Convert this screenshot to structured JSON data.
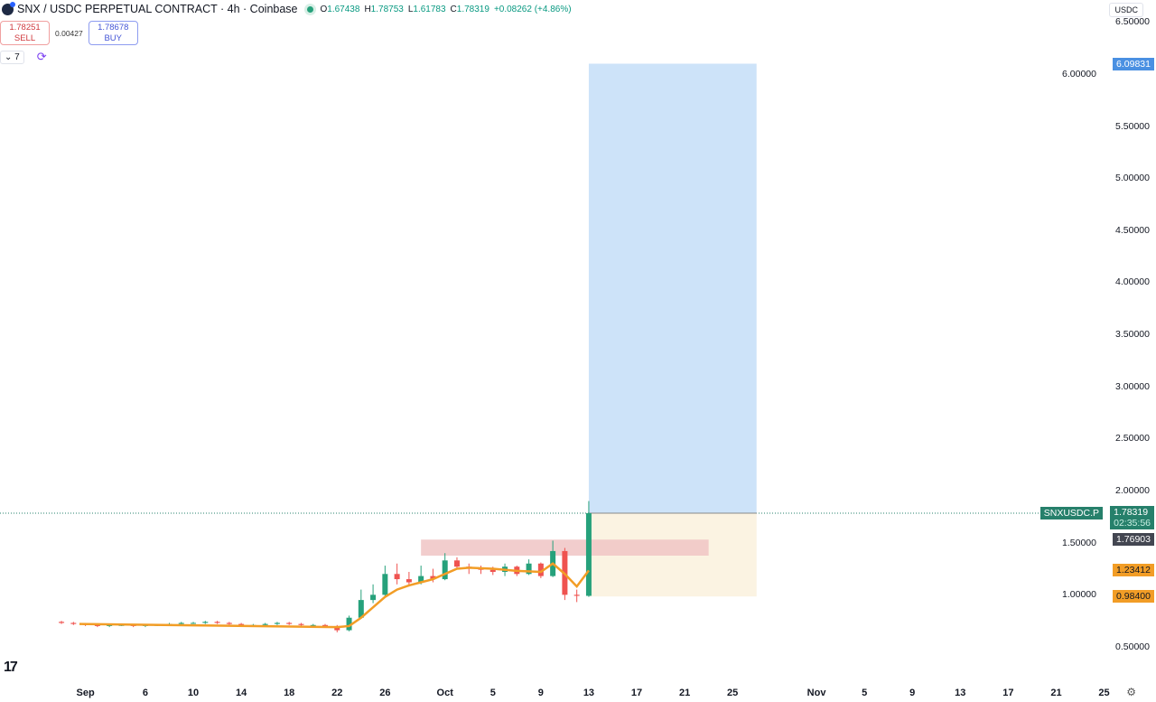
{
  "header": {
    "title": "SNX / USDC PERPETUAL CONTRACT · 4h · Coinbase",
    "ohlc": {
      "o_label": "O",
      "o": "1.67438",
      "h_label": "H",
      "h": "1.78753",
      "l_label": "L",
      "l": "1.61783",
      "c_label": "C",
      "c": "1.78319",
      "change": "+0.08262 (+4.86%)"
    },
    "sell_price": "1.78251",
    "sell_label": "SELL",
    "spread": "0.00427",
    "buy_price": "1.78678",
    "buy_label": "BUY",
    "indicator_count": "7",
    "currency_button": "USDC"
  },
  "colors": {
    "up": "#26a17b",
    "down": "#ef5350",
    "ma": "#f29d26",
    "target_zone": "#cde3f9",
    "stop_zone": "#fbf3e2",
    "resistance_zone": "#f0c4c4",
    "price_tag": "#26806b"
  },
  "chart_data": {
    "type": "candlestick",
    "x_ticks": [
      {
        "label": "Sep",
        "day": 0
      },
      {
        "label": "6",
        "day": 5
      },
      {
        "label": "10",
        "day": 9
      },
      {
        "label": "14",
        "day": 13
      },
      {
        "label": "18",
        "day": 17
      },
      {
        "label": "22",
        "day": 21
      },
      {
        "label": "26",
        "day": 25
      },
      {
        "label": "Oct",
        "day": 30
      },
      {
        "label": "5",
        "day": 34
      },
      {
        "label": "9",
        "day": 38
      },
      {
        "label": "13",
        "day": 42
      },
      {
        "label": "17",
        "day": 46
      },
      {
        "label": "21",
        "day": 50
      },
      {
        "label": "25",
        "day": 54
      },
      {
        "label": "Nov",
        "day": 61
      },
      {
        "label": "5",
        "day": 65
      },
      {
        "label": "9",
        "day": 69
      },
      {
        "label": "13",
        "day": 73
      },
      {
        "label": "17",
        "day": 77
      },
      {
        "label": "21",
        "day": 81
      },
      {
        "label": "25",
        "day": 85
      }
    ],
    "y_ticks": [
      "0.50000",
      "1.00000",
      "1.50000",
      "2.00000",
      "2.50000",
      "3.00000",
      "3.50000",
      "4.00000",
      "4.50000",
      "5.00000",
      "5.50000",
      "6.00000",
      "6.50000"
    ],
    "ylim": [
      0.5,
      6.5
    ],
    "candles_daily_ohlc": [
      [
        -2,
        0.74,
        0.75,
        0.72,
        0.73
      ],
      [
        -1,
        0.73,
        0.74,
        0.71,
        0.72
      ],
      [
        0,
        0.72,
        0.73,
        0.7,
        0.71
      ],
      [
        1,
        0.71,
        0.72,
        0.69,
        0.7
      ],
      [
        2,
        0.7,
        0.72,
        0.69,
        0.71
      ],
      [
        3,
        0.71,
        0.72,
        0.7,
        0.71
      ],
      [
        4,
        0.71,
        0.72,
        0.69,
        0.7
      ],
      [
        5,
        0.7,
        0.72,
        0.69,
        0.71
      ],
      [
        6,
        0.71,
        0.72,
        0.7,
        0.71
      ],
      [
        7,
        0.71,
        0.73,
        0.7,
        0.72
      ],
      [
        8,
        0.72,
        0.74,
        0.71,
        0.73
      ],
      [
        9,
        0.73,
        0.74,
        0.72,
        0.73
      ],
      [
        10,
        0.73,
        0.75,
        0.72,
        0.74
      ],
      [
        11,
        0.74,
        0.75,
        0.72,
        0.73
      ],
      [
        12,
        0.73,
        0.74,
        0.71,
        0.72
      ],
      [
        13,
        0.72,
        0.73,
        0.7,
        0.71
      ],
      [
        14,
        0.71,
        0.72,
        0.7,
        0.71
      ],
      [
        15,
        0.71,
        0.73,
        0.7,
        0.72
      ],
      [
        16,
        0.72,
        0.74,
        0.71,
        0.73
      ],
      [
        17,
        0.73,
        0.74,
        0.71,
        0.72
      ],
      [
        18,
        0.72,
        0.73,
        0.7,
        0.71
      ],
      [
        19,
        0.71,
        0.72,
        0.7,
        0.71
      ],
      [
        20,
        0.71,
        0.72,
        0.69,
        0.7
      ],
      [
        21,
        0.7,
        0.71,
        0.64,
        0.66
      ],
      [
        22,
        0.66,
        0.8,
        0.65,
        0.78
      ],
      [
        23,
        0.78,
        1.05,
        0.77,
        0.95
      ],
      [
        24,
        0.95,
        1.1,
        0.92,
        1.0
      ],
      [
        25,
        1.0,
        1.28,
        0.98,
        1.2
      ],
      [
        26,
        1.2,
        1.3,
        1.1,
        1.15
      ],
      [
        27,
        1.15,
        1.22,
        1.08,
        1.12
      ],
      [
        28,
        1.12,
        1.28,
        1.1,
        1.18
      ],
      [
        29,
        1.18,
        1.25,
        1.12,
        1.15
      ],
      [
        30,
        1.15,
        1.4,
        1.14,
        1.33
      ],
      [
        31,
        1.33,
        1.36,
        1.25,
        1.27
      ],
      [
        32,
        1.27,
        1.3,
        1.2,
        1.25
      ],
      [
        33,
        1.25,
        1.28,
        1.2,
        1.24
      ],
      [
        34,
        1.24,
        1.27,
        1.19,
        1.22
      ],
      [
        35,
        1.22,
        1.3,
        1.18,
        1.27
      ],
      [
        36,
        1.27,
        1.28,
        1.18,
        1.2
      ],
      [
        37,
        1.2,
        1.34,
        1.19,
        1.3
      ],
      [
        38,
        1.3,
        1.31,
        1.16,
        1.18
      ],
      [
        39,
        1.18,
        1.52,
        1.17,
        1.42
      ],
      [
        40,
        1.42,
        1.45,
        0.95,
        1.0
      ],
      [
        41,
        1.0,
        1.05,
        0.93,
        0.99
      ],
      [
        42,
        0.99,
        1.9,
        0.98,
        1.78319
      ]
    ],
    "moving_average": [
      [
        -0.5,
        0.72
      ],
      [
        21,
        0.69
      ],
      [
        22,
        0.7
      ],
      [
        23,
        0.78
      ],
      [
        24,
        0.88
      ],
      [
        25,
        0.98
      ],
      [
        26,
        1.05
      ],
      [
        27,
        1.09
      ],
      [
        28,
        1.12
      ],
      [
        29,
        1.15
      ],
      [
        30,
        1.2
      ],
      [
        31,
        1.25
      ],
      [
        32,
        1.26
      ],
      [
        34,
        1.25
      ],
      [
        36,
        1.23
      ],
      [
        38,
        1.22
      ],
      [
        39,
        1.3
      ],
      [
        40,
        1.2
      ],
      [
        41,
        1.08
      ],
      [
        42,
        1.234
      ]
    ],
    "resistance_zone": {
      "from_day": 28,
      "to_day": 52,
      "low": 1.376,
      "high": 1.53
    },
    "long_position": {
      "from_day": 42,
      "to_day": 56,
      "entry": 1.78319,
      "target": 6.09831,
      "stop": 0.984
    },
    "price_labels": {
      "target": "6.09831",
      "symbol": "SNXUSDC.P",
      "last": "1.78319",
      "countdown": "02:35:56",
      "level": "1.76903",
      "ma": "1.23412",
      "stop": "0.98400"
    }
  }
}
